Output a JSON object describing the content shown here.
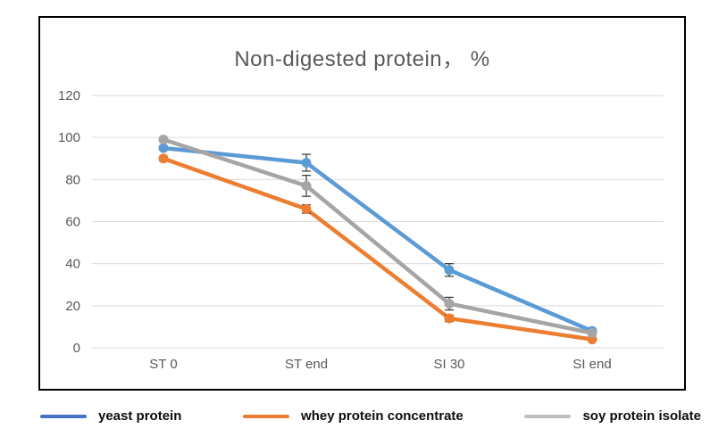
{
  "chart_data": {
    "type": "line",
    "title": "Non-digested protein， %",
    "categories": [
      "ST 0",
      "ST end",
      "SI 30",
      "SI end"
    ],
    "series": [
      {
        "name": "yeast protein",
        "values": [
          95,
          88,
          37,
          8
        ],
        "errors": [
          1,
          4,
          3,
          0.5
        ],
        "color": "#5B9BD5",
        "legend_color": "#4472C4"
      },
      {
        "name": "whey protein concentrate",
        "values": [
          90,
          66,
          14,
          4
        ],
        "errors": [
          1,
          2,
          1.5,
          0.5
        ],
        "color": "#ED7D31",
        "legend_color": "#ED7D31"
      },
      {
        "name": "soy protein isolate",
        "values": [
          99,
          77,
          21,
          7
        ],
        "errors": [
          1,
          5,
          3,
          0.5
        ],
        "color": "#A5A5A5",
        "legend_color": "#BFBFBF"
      }
    ],
    "xlabel": "",
    "ylabel": "",
    "ylim": [
      0,
      120
    ],
    "yticks": [
      0,
      20,
      40,
      60,
      80,
      100,
      120
    ],
    "grid": true,
    "error_bars": true,
    "legend_position": "bottom"
  },
  "colors": {
    "gridline": "#D9D9D9",
    "axis_text": "#595959",
    "title_text": "#595959",
    "error_bar": "#404040",
    "frame_border": "#000000",
    "background": "#FFFFFF"
  }
}
